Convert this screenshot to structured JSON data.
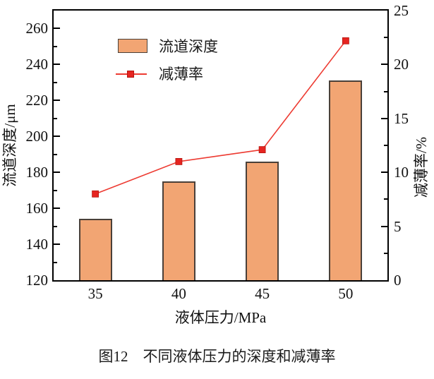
{
  "figure": {
    "caption": "图12　不同液体压力的深度和减薄率"
  },
  "colors": {
    "bar_fill": "#f2a573",
    "bar_border": "#4a4039",
    "line": "#ed3b32",
    "marker_fill": "#e62420",
    "marker_border": "#b3160f",
    "axis": "#000000",
    "text": "#1a1a1a"
  },
  "chart_data": {
    "type": "bar",
    "title": "",
    "categories": [
      "35",
      "40",
      "45",
      "50"
    ],
    "xlabel": "液体压力/MPa",
    "ylabel_left": "流道深度/μm",
    "ylabel_right": "减薄率/%",
    "ylim_left": [
      120,
      270
    ],
    "ylim_right": [
      0,
      25
    ],
    "yticks_left": [
      120,
      140,
      160,
      180,
      200,
      220,
      240,
      260
    ],
    "yticks_right": [
      0,
      5,
      10,
      15,
      20,
      25
    ],
    "minor_step_left": 10,
    "minor_step_right": 2.5,
    "grid": false,
    "legend_position": "inside-top-left",
    "series": [
      {
        "name": "流道深度",
        "type": "bar",
        "axis": "left",
        "unit": "μm",
        "values": [
          154,
          175,
          186,
          231
        ]
      },
      {
        "name": "减薄率",
        "type": "line",
        "axis": "right",
        "unit": "%",
        "marker": "square",
        "values": [
          8.0,
          11.0,
          12.1,
          22.2
        ]
      }
    ]
  }
}
